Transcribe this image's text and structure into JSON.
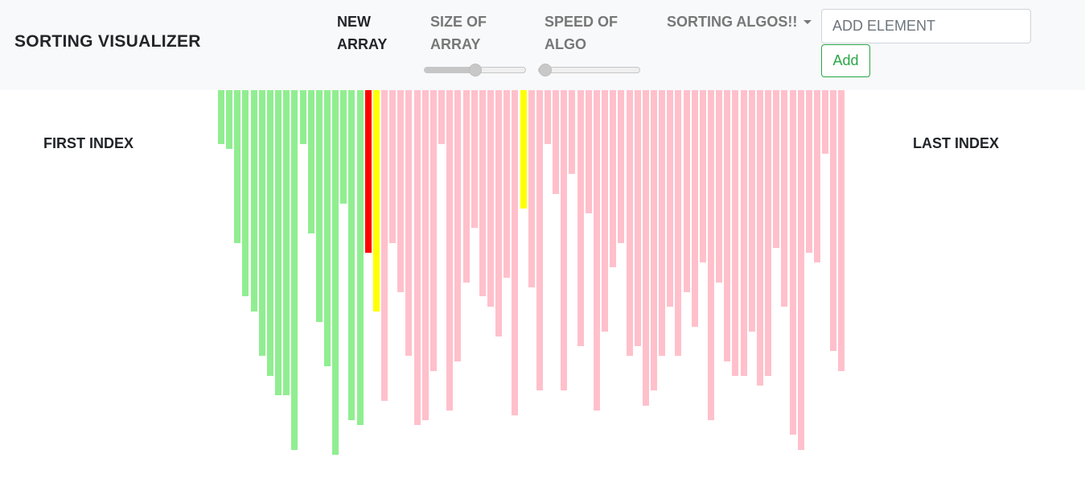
{
  "navbar": {
    "brand": "SORTING VISUALIZER",
    "new_array_line1": "NEW",
    "new_array_line2": "ARRAY",
    "size_line1": "SIZE OF",
    "size_line2": "ARRAY",
    "speed_line1": "SPEED OF",
    "speed_line2": "ALGO",
    "algos": "SORTING ALGOS!!",
    "size_slider_value": 0.5,
    "speed_slider_value": 0.0,
    "add_placeholder": "ADD ELEMENT",
    "add_button": "Add"
  },
  "labels": {
    "first_index": "FIRST INDEX",
    "last_index": "LAST INDEX"
  },
  "colors": {
    "sorted": "#90ee90",
    "unsorted": "#ffc0cb",
    "current": "#ff0000",
    "compare": "#ffff00"
  },
  "bars": [
    {
      "value": 67,
      "state": "sorted"
    },
    {
      "value": 73,
      "state": "sorted"
    },
    {
      "value": 190,
      "state": "sorted"
    },
    {
      "value": 256,
      "state": "sorted"
    },
    {
      "value": 275,
      "state": "sorted"
    },
    {
      "value": 330,
      "state": "sorted"
    },
    {
      "value": 355,
      "state": "sorted"
    },
    {
      "value": 379,
      "state": "sorted"
    },
    {
      "value": 379,
      "state": "sorted"
    },
    {
      "value": 447,
      "state": "sorted"
    },
    {
      "value": 67,
      "state": "sorted"
    },
    {
      "value": 178,
      "state": "sorted"
    },
    {
      "value": 288,
      "state": "sorted"
    },
    {
      "value": 343,
      "state": "sorted"
    },
    {
      "value": 453,
      "state": "sorted"
    },
    {
      "value": 141,
      "state": "sorted"
    },
    {
      "value": 410,
      "state": "sorted"
    },
    {
      "value": 416,
      "state": "sorted"
    },
    {
      "value": 202,
      "state": "current"
    },
    {
      "value": 275,
      "state": "compare"
    },
    {
      "value": 386,
      "state": "unsorted"
    },
    {
      "value": 190,
      "state": "unsorted"
    },
    {
      "value": 251,
      "state": "unsorted"
    },
    {
      "value": 330,
      "state": "unsorted"
    },
    {
      "value": 416,
      "state": "unsorted"
    },
    {
      "value": 410,
      "state": "unsorted"
    },
    {
      "value": 349,
      "state": "unsorted"
    },
    {
      "value": 67,
      "state": "unsorted"
    },
    {
      "value": 398,
      "state": "unsorted"
    },
    {
      "value": 337,
      "state": "unsorted"
    },
    {
      "value": 239,
      "state": "unsorted"
    },
    {
      "value": 171,
      "state": "unsorted"
    },
    {
      "value": 256,
      "state": "unsorted"
    },
    {
      "value": 269,
      "state": "unsorted"
    },
    {
      "value": 306,
      "state": "unsorted"
    },
    {
      "value": 233,
      "state": "unsorted"
    },
    {
      "value": 404,
      "state": "unsorted"
    },
    {
      "value": 147,
      "state": "compare"
    },
    {
      "value": 245,
      "state": "unsorted"
    },
    {
      "value": 373,
      "state": "unsorted"
    },
    {
      "value": 67,
      "state": "unsorted"
    },
    {
      "value": 129,
      "state": "unsorted"
    },
    {
      "value": 373,
      "state": "unsorted"
    },
    {
      "value": 104,
      "state": "unsorted"
    },
    {
      "value": 318,
      "state": "unsorted"
    },
    {
      "value": 153,
      "state": "unsorted"
    },
    {
      "value": 398,
      "state": "unsorted"
    },
    {
      "value": 300,
      "state": "unsorted"
    },
    {
      "value": 220,
      "state": "unsorted"
    },
    {
      "value": 190,
      "state": "unsorted"
    },
    {
      "value": 330,
      "state": "unsorted"
    },
    {
      "value": 318,
      "state": "unsorted"
    },
    {
      "value": 392,
      "state": "unsorted"
    },
    {
      "value": 373,
      "state": "unsorted"
    },
    {
      "value": 330,
      "state": "unsorted"
    },
    {
      "value": 269,
      "state": "unsorted"
    },
    {
      "value": 330,
      "state": "unsorted"
    },
    {
      "value": 251,
      "state": "unsorted"
    },
    {
      "value": 294,
      "state": "unsorted"
    },
    {
      "value": 214,
      "state": "unsorted"
    },
    {
      "value": 410,
      "state": "unsorted"
    },
    {
      "value": 239,
      "state": "unsorted"
    },
    {
      "value": 337,
      "state": "unsorted"
    },
    {
      "value": 355,
      "state": "unsorted"
    },
    {
      "value": 355,
      "state": "unsorted"
    },
    {
      "value": 300,
      "state": "unsorted"
    },
    {
      "value": 367,
      "state": "unsorted"
    },
    {
      "value": 355,
      "state": "unsorted"
    },
    {
      "value": 196,
      "state": "unsorted"
    },
    {
      "value": 269,
      "state": "unsorted"
    },
    {
      "value": 428,
      "state": "unsorted"
    },
    {
      "value": 447,
      "state": "unsorted"
    },
    {
      "value": 202,
      "state": "unsorted"
    },
    {
      "value": 214,
      "state": "unsorted"
    },
    {
      "value": 79,
      "state": "unsorted"
    },
    {
      "value": 324,
      "state": "unsorted"
    },
    {
      "value": 349,
      "state": "unsorted"
    }
  ]
}
